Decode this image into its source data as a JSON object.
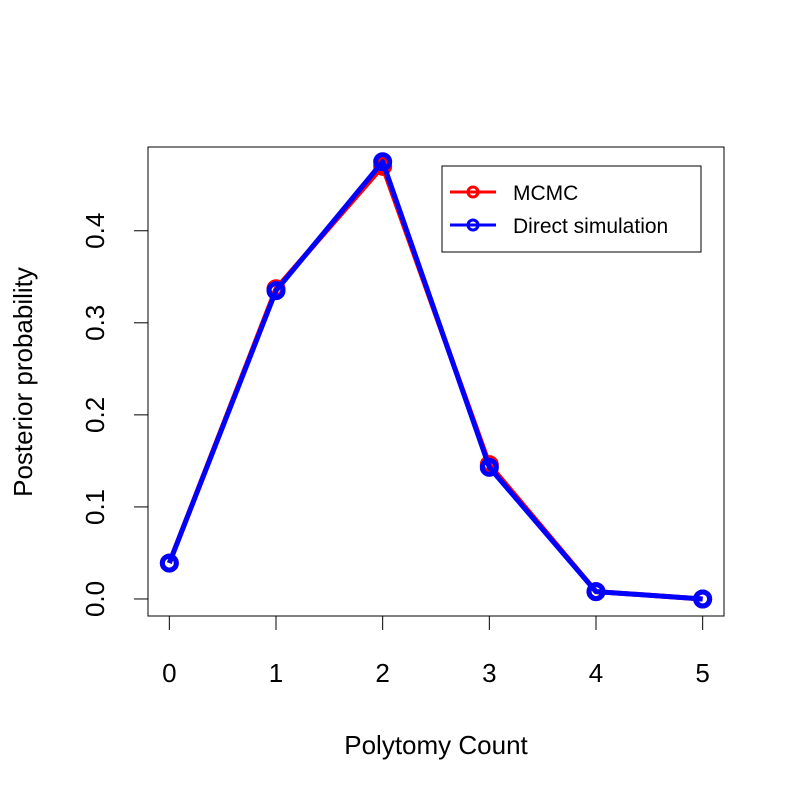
{
  "chart_data": {
    "type": "line",
    "title": "",
    "xlabel": "Polytomy Count",
    "ylabel": "Posterior probability",
    "x": [
      0,
      1,
      2,
      3,
      4,
      5
    ],
    "xticks": [
      "0",
      "1",
      "2",
      "3",
      "4",
      "5"
    ],
    "yticks": [
      "0.0",
      "0.1",
      "0.2",
      "0.3",
      "0.4"
    ],
    "ytick_values": [
      0,
      0.1,
      0.2,
      0.3,
      0.4
    ],
    "xlim": [
      -0.2,
      5.2
    ],
    "ylim": [
      -0.0185,
      0.491
    ],
    "grid": false,
    "legend_position": "top-right",
    "series": [
      {
        "name": "MCMC",
        "color": "#ff0000",
        "values": [
          0.039,
          0.337,
          0.47,
          0.146,
          0.008,
          0.0
        ]
      },
      {
        "name": "Direct simulation",
        "color": "#0000ff",
        "values": [
          0.039,
          0.335,
          0.475,
          0.143,
          0.008,
          0.0
        ]
      }
    ]
  }
}
